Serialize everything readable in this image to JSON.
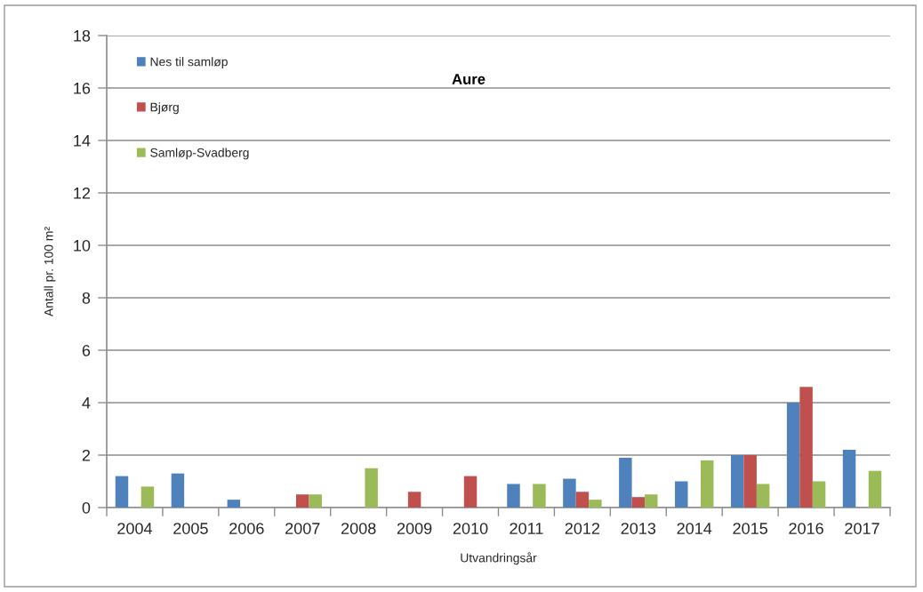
{
  "chart_data": {
    "type": "bar",
    "title": "Aure",
    "xlabel": "Utvandringsår",
    "ylabel": "Antall pr. 100 m²",
    "categories": [
      "2004",
      "2005",
      "2006",
      "2007",
      "2008",
      "2009",
      "2010",
      "2011",
      "2012",
      "2013",
      "2014",
      "2015",
      "2016",
      "2017"
    ],
    "series": [
      {
        "name": "Nes til samløp",
        "color": "#4f81bd",
        "values": [
          1.2,
          1.3,
          0.3,
          null,
          null,
          null,
          null,
          0.9,
          1.1,
          1.9,
          1.0,
          2.0,
          4.0,
          2.2
        ]
      },
      {
        "name": "Bjørg",
        "color": "#c0504d",
        "values": [
          null,
          null,
          null,
          0.5,
          null,
          0.6,
          1.2,
          null,
          0.6,
          0.4,
          null,
          2.0,
          4.6,
          null
        ]
      },
      {
        "name": "Samløp-Svadberg",
        "color": "#9bbb59",
        "values": [
          0.8,
          null,
          null,
          0.5,
          1.5,
          null,
          null,
          0.9,
          0.3,
          0.5,
          1.8,
          0.9,
          1.0,
          1.4
        ]
      }
    ],
    "ylim": [
      0,
      18
    ],
    "yticks": [
      0,
      2,
      4,
      6,
      8,
      10,
      12,
      14,
      16,
      18
    ],
    "grid": "y",
    "legend": "top left"
  }
}
